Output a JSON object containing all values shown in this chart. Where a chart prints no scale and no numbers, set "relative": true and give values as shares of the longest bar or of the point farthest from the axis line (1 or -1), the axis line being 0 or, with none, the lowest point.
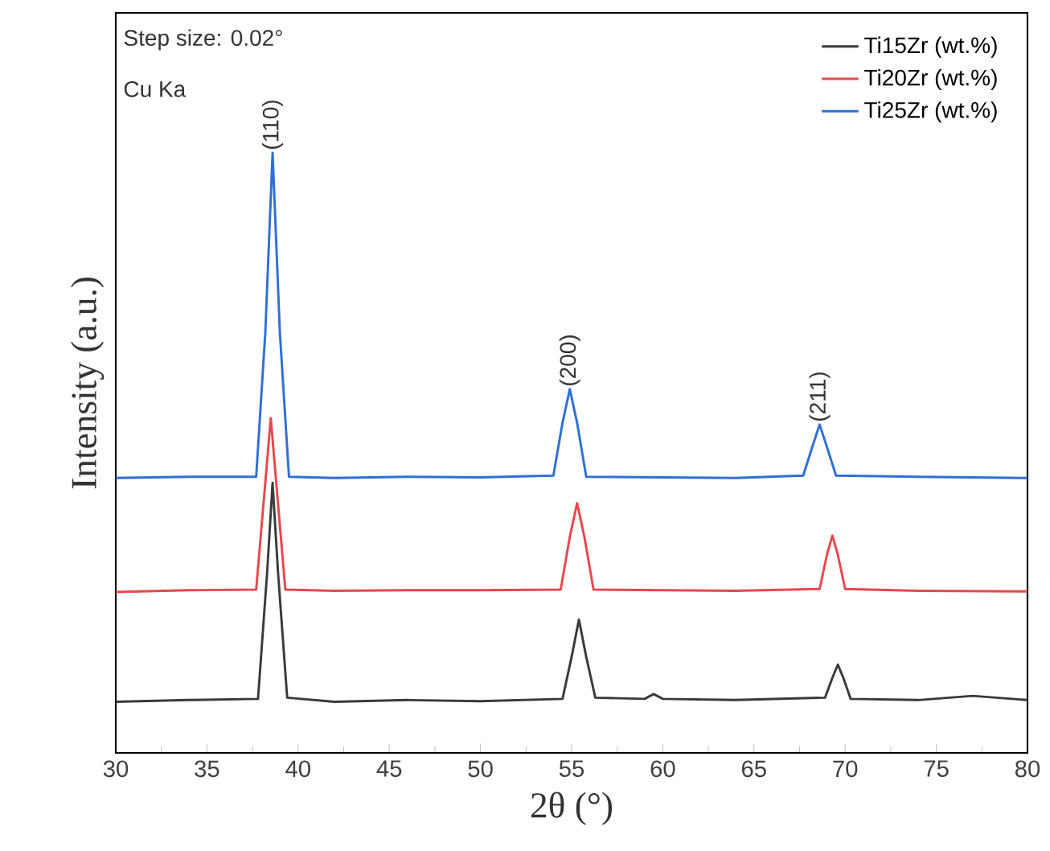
{
  "chart_data": {
    "type": "line",
    "relative": true,
    "xlabel": "2θ (°)",
    "ylabel": "Intensity (a.u.)",
    "xlim": [
      30,
      80
    ],
    "xticks": [
      30,
      35,
      40,
      45,
      50,
      55,
      60,
      65,
      70,
      75,
      80
    ],
    "tick_labels": "x",
    "legend": "top right",
    "line_style": "solid",
    "annotations": [
      "Step size: 0.02°",
      "Cu Ka",
      {
        "text": "(110)",
        "x": 38.6,
        "y": 1.0
      },
      {
        "text": "(200)",
        "x": 54.9,
        "y": 0.606
      },
      {
        "text": "(211)",
        "x": 68.6,
        "y": 0.547
      }
    ],
    "series": [
      {
        "name": "Ti15Zr (wt.%)",
        "color": "#3a3a3a",
        "x": [
          30,
          34,
          37.8,
          38.3,
          38.6,
          38.9,
          39.4,
          42,
          46,
          50,
          54.5,
          55.0,
          55.4,
          55.8,
          56.3,
          59,
          59.5,
          60,
          64,
          68.9,
          69.3,
          69.6,
          69.9,
          70.3,
          74,
          77,
          80
        ],
        "values": [
          0.085,
          0.088,
          0.09,
          0.3,
          0.45,
          0.3,
          0.092,
          0.085,
          0.088,
          0.086,
          0.09,
          0.16,
          0.222,
          0.16,
          0.092,
          0.09,
          0.098,
          0.09,
          0.088,
          0.092,
          0.125,
          0.147,
          0.125,
          0.09,
          0.088,
          0.095,
          0.088
        ]
      },
      {
        "name": "Ti20Zr (wt.%)",
        "color": "#e8474c",
        "x": [
          30,
          34,
          37.7,
          38.2,
          38.5,
          38.8,
          39.3,
          42,
          46,
          50,
          54.4,
          54.9,
          55.3,
          55.7,
          56.2,
          60,
          64,
          68.6,
          69.0,
          69.3,
          69.6,
          70.0,
          74,
          80
        ],
        "values": [
          0.268,
          0.271,
          0.272,
          0.45,
          0.558,
          0.45,
          0.272,
          0.27,
          0.271,
          0.271,
          0.272,
          0.36,
          0.416,
          0.36,
          0.272,
          0.271,
          0.27,
          0.273,
          0.33,
          0.362,
          0.33,
          0.273,
          0.27,
          0.269
        ]
      },
      {
        "name": "Ti25Zr (wt.%)",
        "color": "#2f6fd6",
        "x": [
          30,
          34,
          37.7,
          38.2,
          38.6,
          39.0,
          39.5,
          42,
          46,
          50,
          54.0,
          54.5,
          54.9,
          55.3,
          55.8,
          60,
          64,
          67.7,
          68.2,
          68.6,
          69.0,
          69.5,
          74,
          80
        ],
        "values": [
          0.458,
          0.46,
          0.46,
          0.7,
          1.0,
          0.7,
          0.46,
          0.458,
          0.46,
          0.459,
          0.462,
          0.55,
          0.606,
          0.55,
          0.46,
          0.459,
          0.458,
          0.462,
          0.51,
          0.547,
          0.51,
          0.462,
          0.46,
          0.458
        ]
      }
    ]
  }
}
